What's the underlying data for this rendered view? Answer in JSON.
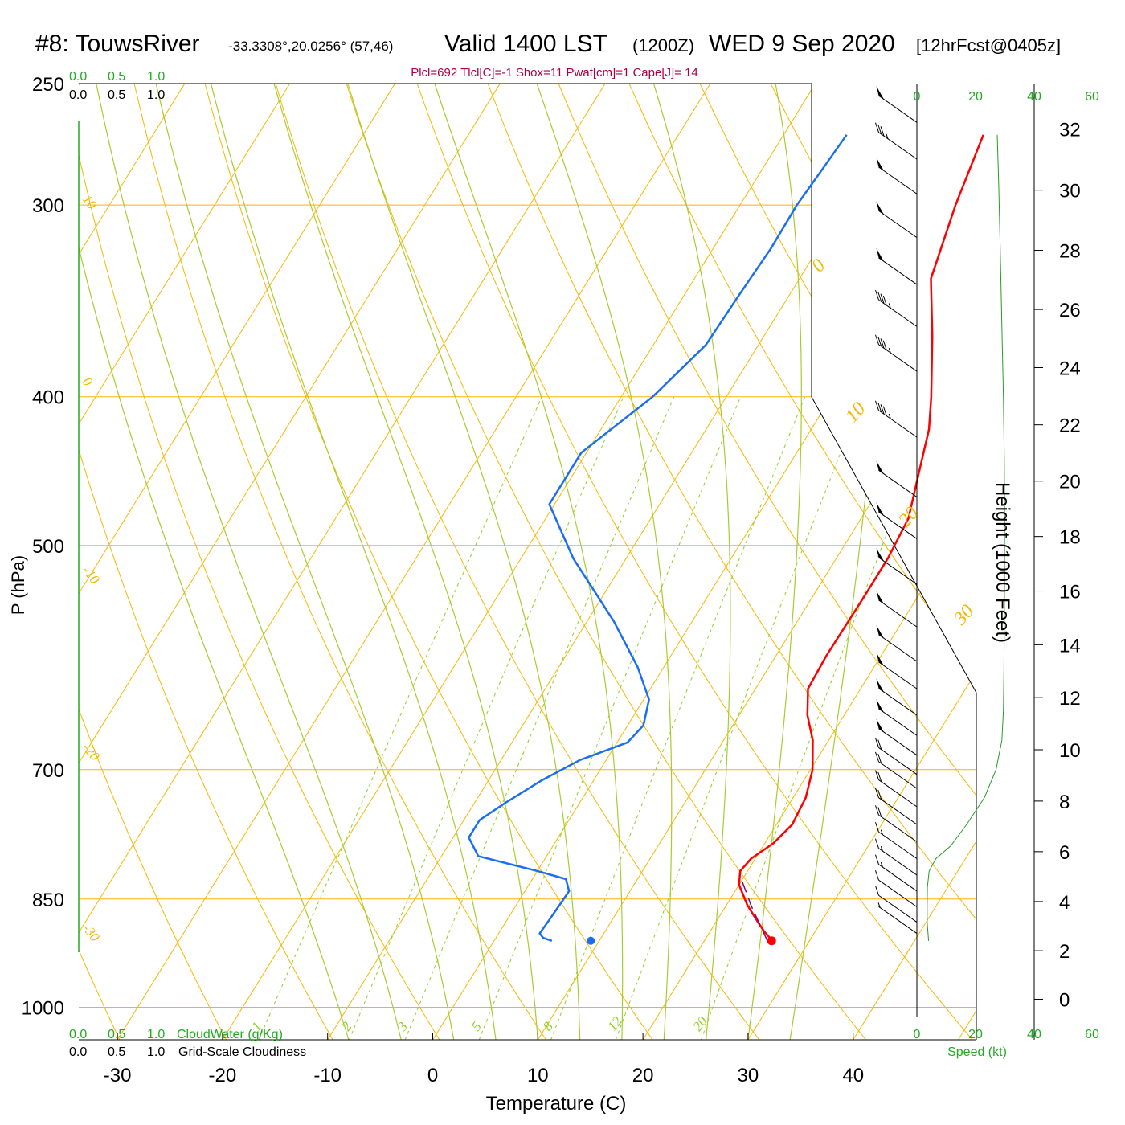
{
  "header": {
    "station": "#8: TouwsRiver",
    "coords": "-33.3308°,20.0256° (57,46)",
    "valid": "Valid 1400 LST",
    "zulu": "(1200Z)",
    "date": "WED 9 Sep 2020",
    "forecast": "[12hrFcst@0405z]",
    "params": "Plcl=692 Tlcl[C]=-1 Shox=11 Pwat[cm]=1 Cape[J]= 14"
  },
  "colors": {
    "temperature": "#ff0000",
    "dewpoint": "#1a6fef",
    "parcel": "#8b008b",
    "isobar_isotherm": "#f5b800",
    "mixing_ratio": "#90d020",
    "adiabat": "#a8cc30",
    "green_label": "#22aa22",
    "pwat": "#aa0044"
  },
  "chart_data": {
    "type": "line",
    "title": "#8: TouwsRiver  Valid 1400 LST (1200Z) WED 9 Sep 2020",
    "xlabel": "Temperature (C)",
    "ylabel": "P (hPa)",
    "y2label": "Height (1000 Feet)",
    "xlim": [
      -34,
      36
    ],
    "ylim": [
      1050,
      250
    ],
    "y_scale": "log",
    "x_ticks": [
      -30,
      -20,
      -10,
      0,
      10,
      20,
      30,
      40
    ],
    "pressure_ticks": [
      250,
      300,
      400,
      500,
      700,
      850,
      1000
    ],
    "height_ticks": [
      0,
      2,
      4,
      6,
      8,
      10,
      12,
      14,
      16,
      18,
      20,
      22,
      24,
      26,
      28,
      30,
      32
    ],
    "skewed_isotherm_labels": [
      -10,
      0,
      10,
      20,
      30
    ],
    "left_isotherm_labels": [
      10,
      0,
      -10,
      -20,
      -30
    ],
    "mixing_ratio_labels": [
      1,
      2,
      3,
      5,
      8,
      12,
      20
    ],
    "mixing_ratio_values_gkg": [
      1,
      2,
      3,
      5,
      8,
      12,
      20
    ],
    "cloud_scale": {
      "top_green": [
        "0.0",
        "0.5",
        "1.0"
      ],
      "top_black": [
        "0.0",
        "0.5",
        "1.0"
      ],
      "bottom_green": [
        "0.0",
        "0.5",
        "1.0"
      ],
      "bottom_black": [
        "0.0",
        "0.5",
        "1.0"
      ],
      "cloudwater_label": "CloudWater (g/Kg)",
      "cloudiness_label": "Grid-Scale Cloudiness"
    },
    "wind_speed_axis": {
      "label": "Speed (kt)",
      "ticks": [
        "0",
        "20",
        "40",
        "60"
      ]
    },
    "series": [
      {
        "name": "Temperature",
        "points": [
          [
            26.5,
            905
          ],
          [
            25.2,
            893
          ],
          [
            24.0,
            880
          ],
          [
            22.0,
            858
          ],
          [
            20.0,
            832
          ],
          [
            19.3,
            815
          ],
          [
            19.6,
            800
          ],
          [
            20.8,
            782
          ],
          [
            21.5,
            760
          ],
          [
            21.2,
            730
          ],
          [
            20.2,
            700
          ],
          [
            18.5,
            670
          ],
          [
            16.5,
            645
          ],
          [
            15.0,
            620
          ],
          [
            14.8,
            590
          ],
          [
            14.9,
            540
          ],
          [
            14.9,
            510
          ],
          [
            14.5,
            480
          ],
          [
            12.9,
            450
          ],
          [
            11.2,
            420
          ],
          [
            9.5,
            400
          ],
          [
            6.0,
            365
          ],
          [
            2.5,
            335
          ],
          [
            0.5,
            300
          ],
          [
            -1.0,
            270
          ]
        ]
      },
      {
        "name": "Dewpoint",
        "points": [
          [
            5.5,
            905
          ],
          [
            4.5,
            901
          ],
          [
            3.9,
            895
          ],
          [
            4.0,
            880
          ],
          [
            4.1,
            860
          ],
          [
            4.2,
            840
          ],
          [
            3.2,
            825
          ],
          [
            0.0,
            815
          ],
          [
            -6.5,
            797
          ],
          [
            -8.5,
            775
          ],
          [
            -8.5,
            755
          ],
          [
            -7.0,
            735
          ],
          [
            -5.0,
            712
          ],
          [
            -2.5,
            690
          ],
          [
            1.0,
            672
          ],
          [
            1.5,
            655
          ],
          [
            0.5,
            630
          ],
          [
            -2.5,
            600
          ],
          [
            -7.5,
            560
          ],
          [
            -15.0,
            510
          ],
          [
            -20.5,
            470
          ],
          [
            -20.5,
            435
          ],
          [
            -17.0,
            400
          ],
          [
            -15.0,
            370
          ],
          [
            -14.8,
            345
          ],
          [
            -14.5,
            320
          ],
          [
            -14.6,
            300
          ],
          [
            -14.3,
            285
          ],
          [
            -14.0,
            270
          ]
        ]
      },
      {
        "name": "Parcel",
        "points": [
          [
            26.0,
            905
          ],
          [
            22.5,
            860
          ],
          [
            19.5,
            820
          ]
        ]
      }
    ],
    "surface_points": {
      "temperature": [
        26.4,
        905
      ],
      "dewpoint": [
        9.2,
        905
      ]
    },
    "wind_profile_kt": [
      {
        "hPa": 265,
        "speed": 50
      },
      {
        "hPa": 280,
        "speed": 35
      },
      {
        "hPa": 295,
        "speed": 50
      },
      {
        "hPa": 315,
        "speed": 50
      },
      {
        "hPa": 338,
        "speed": 50
      },
      {
        "hPa": 360,
        "speed": 45
      },
      {
        "hPa": 385,
        "speed": 45
      },
      {
        "hPa": 425,
        "speed": 45
      },
      {
        "hPa": 465,
        "speed": 50
      },
      {
        "hPa": 495,
        "speed": 50
      },
      {
        "hPa": 530,
        "speed": 50
      },
      {
        "hPa": 565,
        "speed": 50
      },
      {
        "hPa": 595,
        "speed": 50
      },
      {
        "hPa": 620,
        "speed": 50
      },
      {
        "hPa": 645,
        "speed": 50
      },
      {
        "hPa": 665,
        "speed": 50
      },
      {
        "hPa": 685,
        "speed": 50
      },
      {
        "hPa": 705,
        "speed": 20
      },
      {
        "hPa": 720,
        "speed": 20
      },
      {
        "hPa": 740,
        "speed": 20
      },
      {
        "hPa": 760,
        "speed": 20
      },
      {
        "hPa": 780,
        "speed": 20
      },
      {
        "hPa": 800,
        "speed": 15
      },
      {
        "hPa": 820,
        "speed": 15
      },
      {
        "hPa": 840,
        "speed": 15
      },
      {
        "hPa": 860,
        "speed": 10
      },
      {
        "hPa": 880,
        "speed": 10
      },
      {
        "hPa": 895,
        "speed": 5
      }
    ],
    "speed_curve_kt": [
      [
        4,
        905
      ],
      [
        3.5,
        880
      ],
      [
        3.5,
        860
      ],
      [
        3.6,
        835
      ],
      [
        4.2,
        815
      ],
      [
        6.5,
        800
      ],
      [
        11.5,
        785
      ],
      [
        17,
        760
      ],
      [
        23,
        730
      ],
      [
        27,
        700
      ],
      [
        29,
        670
      ],
      [
        29.5,
        640
      ],
      [
        29.7,
        600
      ],
      [
        29.8,
        560
      ],
      [
        29.9,
        520
      ],
      [
        29.9,
        480
      ],
      [
        29.8,
        440
      ],
      [
        29.5,
        400
      ],
      [
        29,
        360
      ],
      [
        28.4,
        320
      ],
      [
        27.9,
        290
      ],
      [
        27.4,
        270
      ]
    ]
  }
}
